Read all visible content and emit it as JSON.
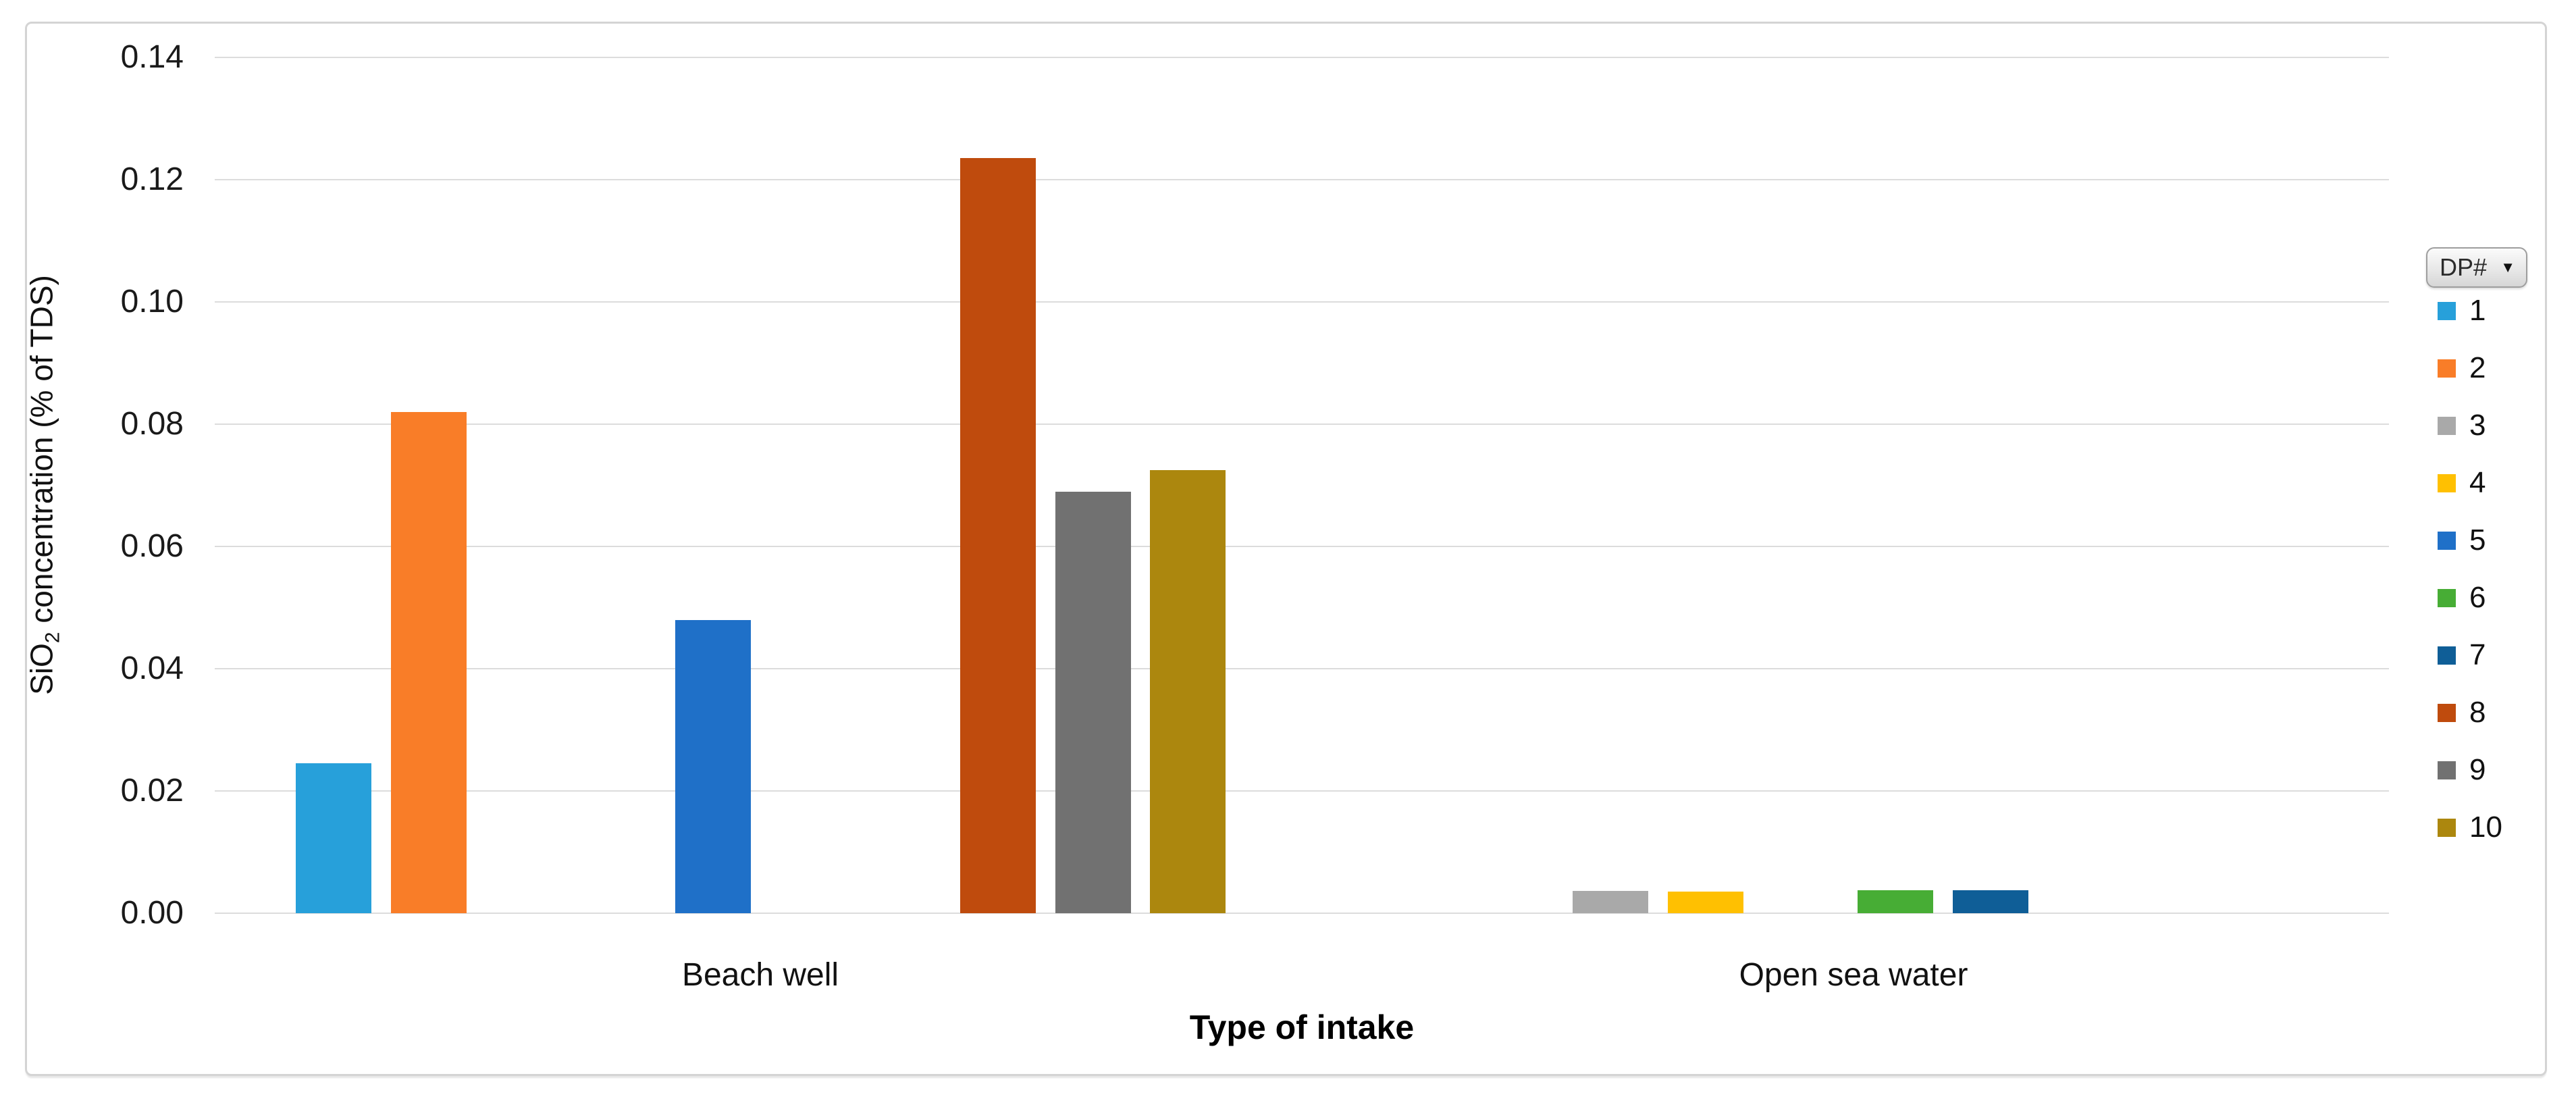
{
  "chart_data": {
    "type": "bar",
    "title": "",
    "xlabel": "Type of intake",
    "ylabel_text": "SiO2 concentration (% of TDS)",
    "ylabel_parts": {
      "prefix": "SiO",
      "sub": "2",
      "suffix": " concentration (% of TDS)"
    },
    "categories": [
      "Beach well",
      "Open sea water"
    ],
    "series": [
      {
        "name": "1",
        "color": "#27A0DA",
        "values": [
          0.0245,
          null
        ]
      },
      {
        "name": "2",
        "color": "#F97D28",
        "values": [
          0.082,
          null
        ]
      },
      {
        "name": "3",
        "color": "#A9A9A9",
        "values": [
          null,
          0.0037
        ]
      },
      {
        "name": "4",
        "color": "#FFC001",
        "values": [
          null,
          0.0035
        ]
      },
      {
        "name": "5",
        "color": "#1F70C8",
        "values": [
          0.048,
          null
        ]
      },
      {
        "name": "6",
        "color": "#47AD35",
        "values": [
          null,
          0.0038
        ]
      },
      {
        "name": "7",
        "color": "#0F5E97",
        "values": [
          null,
          0.0038
        ]
      },
      {
        "name": "8",
        "color": "#BF4B0D",
        "values": [
          0.1235,
          null
        ]
      },
      {
        "name": "9",
        "color": "#717171",
        "values": [
          0.069,
          null
        ]
      },
      {
        "name": "10",
        "color": "#AC870E",
        "values": [
          0.0725,
          null
        ]
      }
    ],
    "y_axis": {
      "min": 0,
      "max": 0.14,
      "step": 0.02,
      "tick_labels": [
        "0.14",
        "0.12",
        "0.10",
        "0.08",
        "0.06",
        "0.04",
        "0.02",
        "0.00"
      ]
    },
    "grid": true,
    "legend": {
      "position": "right",
      "header": "DP#"
    }
  },
  "legend_button": {
    "label": "DP#",
    "dropdown_icon": "▼"
  },
  "colors": {
    "gridline": "#dcdcdc",
    "frame_border": "#d4d4d4",
    "accent_text": "#1a1a1a"
  }
}
